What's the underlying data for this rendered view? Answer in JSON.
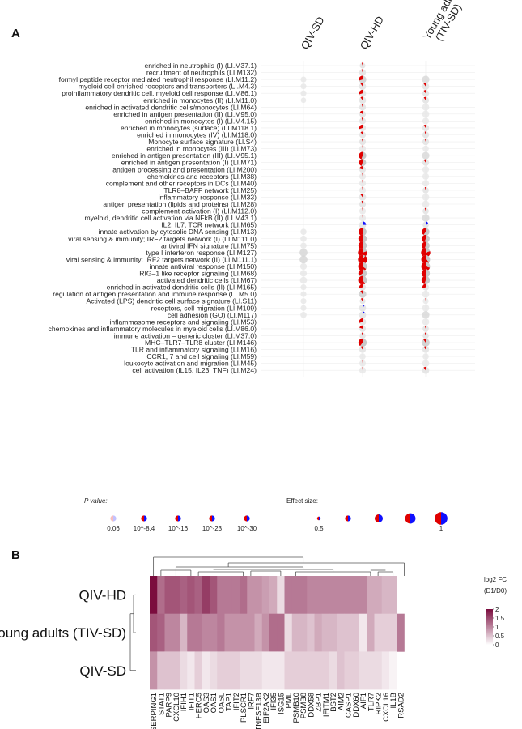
{
  "panel_a": {
    "panel_label": "A",
    "groups": [
      "QIV-SD",
      "QIV-HD",
      "Young adults (TIV-SD)"
    ],
    "group_header_lines": [
      [
        "QIV-SD"
      ],
      [
        "QIV-HD"
      ],
      [
        "Young adults",
        "(TIV-SD)"
      ]
    ],
    "legend": {
      "p_value_title": "P value:",
      "p_value_labels": [
        "0.06",
        "10^-8.4",
        "10^-16",
        "10^-23",
        "10^-30"
      ],
      "effect_size_title": "Effect size:",
      "effect_size_labels": [
        "0.5",
        "",
        "",
        "",
        "1"
      ],
      "up_color": "#e00000",
      "down_color": "#1010ff",
      "ns_color": "#d0d0d0"
    }
  },
  "panel_b": {
    "panel_label": "B",
    "legend_title_line1": "log2 FC",
    "legend_title_line2": "(D1/D0)",
    "legend_ticks": [
      "2",
      "1.5",
      "1",
      "0.5",
      "0"
    ],
    "color_low": "#ffffff",
    "color_high": "#7b0c3e"
  },
  "chart_data": [
    {
      "type": "pie-dot-matrix",
      "columns": [
        "QIV-SD",
        "QIV-HD",
        "Young adults (TIV-SD)"
      ],
      "cell_format": "[fraction up (red), fraction down (blue), effect size]; null = not shown",
      "rows": [
        {
          "label": "enriched in neutrophils (I) (LI.M37.1)",
          "cells": [
            null,
            [
              0.05,
              0,
              0.4
            ],
            null
          ]
        },
        {
          "label": "recruitment of neutrophils (LI.M132)",
          "cells": [
            null,
            [
              0.05,
              0,
              0.5
            ],
            null
          ]
        },
        {
          "label": "formyl peptide receptor mediated neutrophil response (LI.M11.2)",
          "cells": [
            [
              0,
              0,
              0.4
            ],
            [
              0.3,
              0,
              0.6
            ],
            [
              0,
              0,
              0.6
            ]
          ]
        },
        {
          "label": "myeloid cell enriched receptors and transporters (LI.M4.3)",
          "cells": [
            [
              0,
              0,
              0.4
            ],
            [
              0.1,
              0,
              0.55
            ],
            [
              0.1,
              0,
              0.55
            ]
          ]
        },
        {
          "label": "proinflammatory dendritic cell, myeloid cell response (LI.M86.1)",
          "cells": [
            [
              0,
              0,
              0.4
            ],
            [
              0.3,
              0,
              0.55
            ],
            [
              0.1,
              0,
              0.5
            ]
          ]
        },
        {
          "label": "enriched in monocytes (II) (LI.M11.0)",
          "cells": [
            [
              0,
              0,
              0.35
            ],
            [
              0.1,
              0,
              0.55
            ],
            [
              0.1,
              0,
              0.5
            ]
          ]
        },
        {
          "label": "enriched in activated dendritic cells/monocytes (LI.M64)",
          "cells": [
            null,
            [
              0.05,
              0,
              0.5
            ],
            [
              0,
              0,
              0.55
            ]
          ]
        },
        {
          "label": "enriched in antigen presentation (II) (LI.M95.0)",
          "cells": [
            null,
            [
              0.15,
              0,
              0.5
            ],
            [
              0,
              0,
              0.55
            ]
          ]
        },
        {
          "label": "enriched in monocytes (I) (LI.M4.15)",
          "cells": [
            null,
            [
              0.05,
              0,
              0.5
            ],
            [
              0,
              0,
              0.5
            ]
          ]
        },
        {
          "label": "enriched in monocytes (surface) (LI.M118.1)",
          "cells": [
            null,
            [
              0.3,
              0,
              0.5
            ],
            [
              0.1,
              0,
              0.5
            ]
          ]
        },
        {
          "label": "enriched in monocytes (IV) (LI.M118.0)",
          "cells": [
            null,
            [
              0.1,
              0,
              0.5
            ],
            [
              0.05,
              0,
              0.5
            ]
          ]
        },
        {
          "label": "Monocyte surface signature (LI.S4)",
          "cells": [
            null,
            [
              0.05,
              0,
              0.5
            ],
            [
              0.05,
              0,
              0.5
            ]
          ]
        },
        {
          "label": "enriched in monocytes (III) (LI.M73)",
          "cells": [
            null,
            [
              0.02,
              0,
              0.5
            ],
            [
              0,
              0,
              0.45
            ]
          ]
        },
        {
          "label": "enriched in antigen presentation (III) (LI.M95.1)",
          "cells": [
            null,
            [
              0.45,
              0,
              0.6
            ],
            [
              0,
              0,
              0.6
            ]
          ]
        },
        {
          "label": "enriched in antigen presentation (I) (LI.M71)",
          "cells": [
            null,
            [
              0.45,
              0,
              0.55
            ],
            [
              0.1,
              0,
              0.5
            ]
          ]
        },
        {
          "label": "antigen processing and presentation (LI.M200)",
          "cells": [
            null,
            [
              0.2,
              0,
              0.5
            ],
            [
              0,
              0,
              0.5
            ]
          ]
        },
        {
          "label": "chemokines and receptors (LI.M38)",
          "cells": [
            null,
            [
              0.03,
              0,
              0.5
            ],
            [
              0,
              0,
              0.5
            ]
          ]
        },
        {
          "label": "complement and other receptors in DCs (LI.M40)",
          "cells": [
            null,
            [
              0.03,
              0,
              0.5
            ],
            [
              0,
              0,
              0.5
            ]
          ]
        },
        {
          "label": "TLR8–BAFF network (LI.M25)",
          "cells": [
            null,
            [
              0.03,
              0,
              0.5
            ],
            [
              0.05,
              0,
              0.45
            ]
          ]
        },
        {
          "label": "inflammatory response (LI.M33)",
          "cells": [
            null,
            [
              0.1,
              0,
              0.55
            ],
            [
              0,
              0,
              0.55
            ]
          ]
        },
        {
          "label": "antigen presentation (lipids and proteins) (LI.M28)",
          "cells": [
            null,
            [
              0.05,
              0,
              0.5
            ],
            [
              0,
              0,
              0.55
            ]
          ]
        },
        {
          "label": "complement activation (I) (LI.M112.0)",
          "cells": [
            null,
            [
              0.03,
              0,
              0.5
            ],
            [
              0.05,
              0,
              0.45
            ]
          ]
        },
        {
          "label": "myeloid, dendritic cell activation via NFkB (II) (LI.M43.1)",
          "cells": [
            null,
            [
              0.02,
              0,
              0.5
            ],
            [
              0,
              0,
              0.6
            ]
          ]
        },
        {
          "label": "IL2, IL7, TCR network (LI.M65)",
          "cells": [
            null,
            [
              0,
              0.25,
              0.55
            ],
            [
              0,
              0.15,
              0.45
            ]
          ]
        },
        {
          "label": "innate activation by cytosolic DNA sensing (LI.M13)",
          "cells": [
            [
              0,
              0,
              0.45
            ],
            [
              0.5,
              0,
              0.65
            ],
            [
              0.4,
              0,
              0.6
            ]
          ]
        },
        {
          "label": "viral sensing & immunity; IRF2 targets network (I) (LI.M111.0)",
          "cells": [
            [
              0,
              0,
              0.45
            ],
            [
              0.55,
              0,
              0.7
            ],
            [
              0.45,
              0,
              0.65
            ]
          ]
        },
        {
          "label": "antiviral IFN signature (LI.M75)",
          "cells": [
            [
              0,
              0,
              0.45
            ],
            [
              0.55,
              0,
              0.7
            ],
            [
              0.45,
              0,
              0.65
            ]
          ]
        },
        {
          "label": "type I interferon response (LI.M127)",
          "cells": [
            [
              0,
              0,
              0.65
            ],
            [
              0.8,
              0,
              0.8
            ],
            [
              0.8,
              0,
              0.8
            ]
          ]
        },
        {
          "label": "viral sensing & immunity; IRF2 targets network (II) (LI.M111.1)",
          "cells": [
            [
              0,
              0,
              0.65
            ],
            [
              0.9,
              0,
              0.8
            ],
            [
              0.65,
              0,
              0.75
            ]
          ]
        },
        {
          "label": "innate antiviral response (LI.M150)",
          "cells": [
            [
              0,
              0,
              0.5
            ],
            [
              0.65,
              0,
              0.75
            ],
            [
              0.7,
              0,
              0.75
            ]
          ]
        },
        {
          "label": "RIG–1 like receptor signaling (LI.M68)",
          "cells": [
            [
              0,
              0,
              0.5
            ],
            [
              0.35,
              0,
              0.7
            ],
            [
              0.5,
              0,
              0.7
            ]
          ]
        },
        {
          "label": "activated dendritic cells (LI.M67)",
          "cells": [
            [
              0,
              0,
              0.55
            ],
            [
              0.6,
              0,
              0.75
            ],
            [
              0.45,
              0,
              0.7
            ]
          ]
        },
        {
          "label": "enriched in activated dendritic cells (II) (LI.M165)",
          "cells": [
            [
              0,
              0,
              0.4
            ],
            [
              0.3,
              0,
              0.5
            ],
            [
              0.3,
              0,
              0.5
            ]
          ]
        },
        {
          "label": "regulation of antigen presentation and immune response (LI.M5.0)",
          "cells": [
            [
              0,
              0,
              0.4
            ],
            [
              0.1,
              0,
              0.6
            ],
            [
              0,
              0,
              0.55
            ]
          ]
        },
        {
          "label": "Activated (LPS) dendritic cell surface signature (LI.S11)",
          "cells": [
            [
              0,
              0,
              0.4
            ],
            [
              0.1,
              0,
              0.4
            ],
            [
              0.03,
              0,
              0.4
            ]
          ]
        },
        {
          "label": "receptors, cell migration (LI.M109)",
          "cells": [
            [
              0,
              0,
              0.4
            ],
            [
              0,
              0.1,
              0.55
            ],
            [
              0,
              0,
              0.55
            ]
          ]
        },
        {
          "label": "cell adhesion (GO) (LI.M117)",
          "cells": [
            [
              0,
              0,
              0.45
            ],
            [
              0,
              0.1,
              0.55
            ],
            [
              0,
              0,
              0.6
            ]
          ]
        },
        {
          "label": "inflammasome receptors and signaling (LI.M53)",
          "cells": [
            null,
            [
              0.3,
              0,
              0.55
            ],
            [
              0,
              0,
              0.55
            ]
          ]
        },
        {
          "label": "chemokines and inflammatory molecules in myeloid cells (LI.M86.0)",
          "cells": [
            null,
            [
              0.2,
              0,
              0.5
            ],
            [
              0.05,
              0,
              0.45
            ]
          ]
        },
        {
          "label": "immune activation – generic cluster (LI.M37.0)",
          "cells": [
            null,
            [
              0.05,
              0,
              0.45
            ],
            [
              0.05,
              0,
              0.45
            ]
          ]
        },
        {
          "label": "MHC–TLR7–TLR8 cluster (LI.M146)",
          "cells": [
            null,
            [
              0.4,
              0,
              0.7
            ],
            [
              0.1,
              0,
              0.65
            ]
          ]
        },
        {
          "label": "TLR and inflammatory signaling (LI.M16)",
          "cells": [
            null,
            [
              0.1,
              0,
              0.5
            ],
            [
              0.1,
              0,
              0.5
            ]
          ]
        },
        {
          "label": "CCR1, 7 and cell signaling (LI.M59)",
          "cells": [
            null,
            [
              0,
              0,
              0.45
            ],
            [
              0,
              0,
              0.45
            ]
          ]
        },
        {
          "label": "leukocyte activation and migration (LI.M45)",
          "cells": [
            null,
            [
              0.02,
              0,
              0.5
            ],
            [
              0,
              0,
              0.55
            ]
          ]
        },
        {
          "label": "cell activation (IL15, IL23, TNF) (LI.M24)",
          "cells": [
            null,
            [
              0.02,
              0,
              0.5
            ],
            [
              0.1,
              0,
              0.55
            ]
          ]
        }
      ]
    },
    {
      "type": "heatmap",
      "rows": [
        "QIV-HD",
        "Young adults (TIV-SD)",
        "QIV-SD"
      ],
      "columns": [
        "SERPING1",
        "STAT1",
        "PARP9",
        "CXCL10",
        "IFIH1",
        "IFIT1",
        "HERC5",
        "OAS3",
        "OAS1",
        "OASL",
        "TAP1",
        "IFIT2",
        "PLSCR1",
        "IRF7",
        "TNFSF13B",
        "EIF2AK2",
        "IFI35",
        "ISG15",
        "PML",
        "PSMB10",
        "PSMB8",
        "DDX58",
        "ZBP1",
        "IFITM1",
        "BST2",
        "AIM2",
        "CASP1",
        "DDX60",
        "AIF1",
        "TLR7",
        "RIPK2",
        "CXCL16",
        "IL1B",
        "RSAD2"
      ],
      "values": [
        [
          2.1,
          1.2,
          1.4,
          1.4,
          1.3,
          1.4,
          1.3,
          1.6,
          1.4,
          1.1,
          1.1,
          1.1,
          1.2,
          0.9,
          0.9,
          0.8,
          0.7,
          0.3,
          1.1,
          1.1,
          1.1,
          1.0,
          1.0,
          1.0,
          1.0,
          1.0,
          1.0,
          1.0,
          1.0,
          0.7,
          0.7,
          0.6,
          0.6,
          null
        ],
        [
          1.4,
          1.3,
          1.0,
          1.0,
          0.6,
          1.1,
          1.1,
          1.0,
          1.0,
          1.1,
          0.9,
          0.9,
          0.9,
          0.9,
          0.7,
          0.9,
          1.2,
          1.2,
          0.3,
          0.6,
          0.6,
          0.5,
          0.7,
          0.6,
          0.6,
          0.5,
          0.5,
          0.5,
          0.2,
          0.7,
          0.4,
          0.4,
          0.4,
          1.1
        ],
        [
          0.9,
          0.5,
          0.5,
          0.5,
          0.3,
          0.2,
          0.4,
          0.2,
          0.3,
          0.4,
          0.4,
          0.4,
          0.3,
          0.3,
          0.3,
          0.2,
          0.2,
          0.2,
          0.4,
          0.4,
          0.4,
          0.4,
          0.4,
          0.4,
          0.3,
          0.5,
          0.4,
          0.4,
          0.3,
          0.3,
          0.3,
          0.2,
          0.1,
          null
        ]
      ],
      "legend_title": "log2 FC (D1/D0)",
      "range": [
        0,
        2
      ]
    }
  ]
}
